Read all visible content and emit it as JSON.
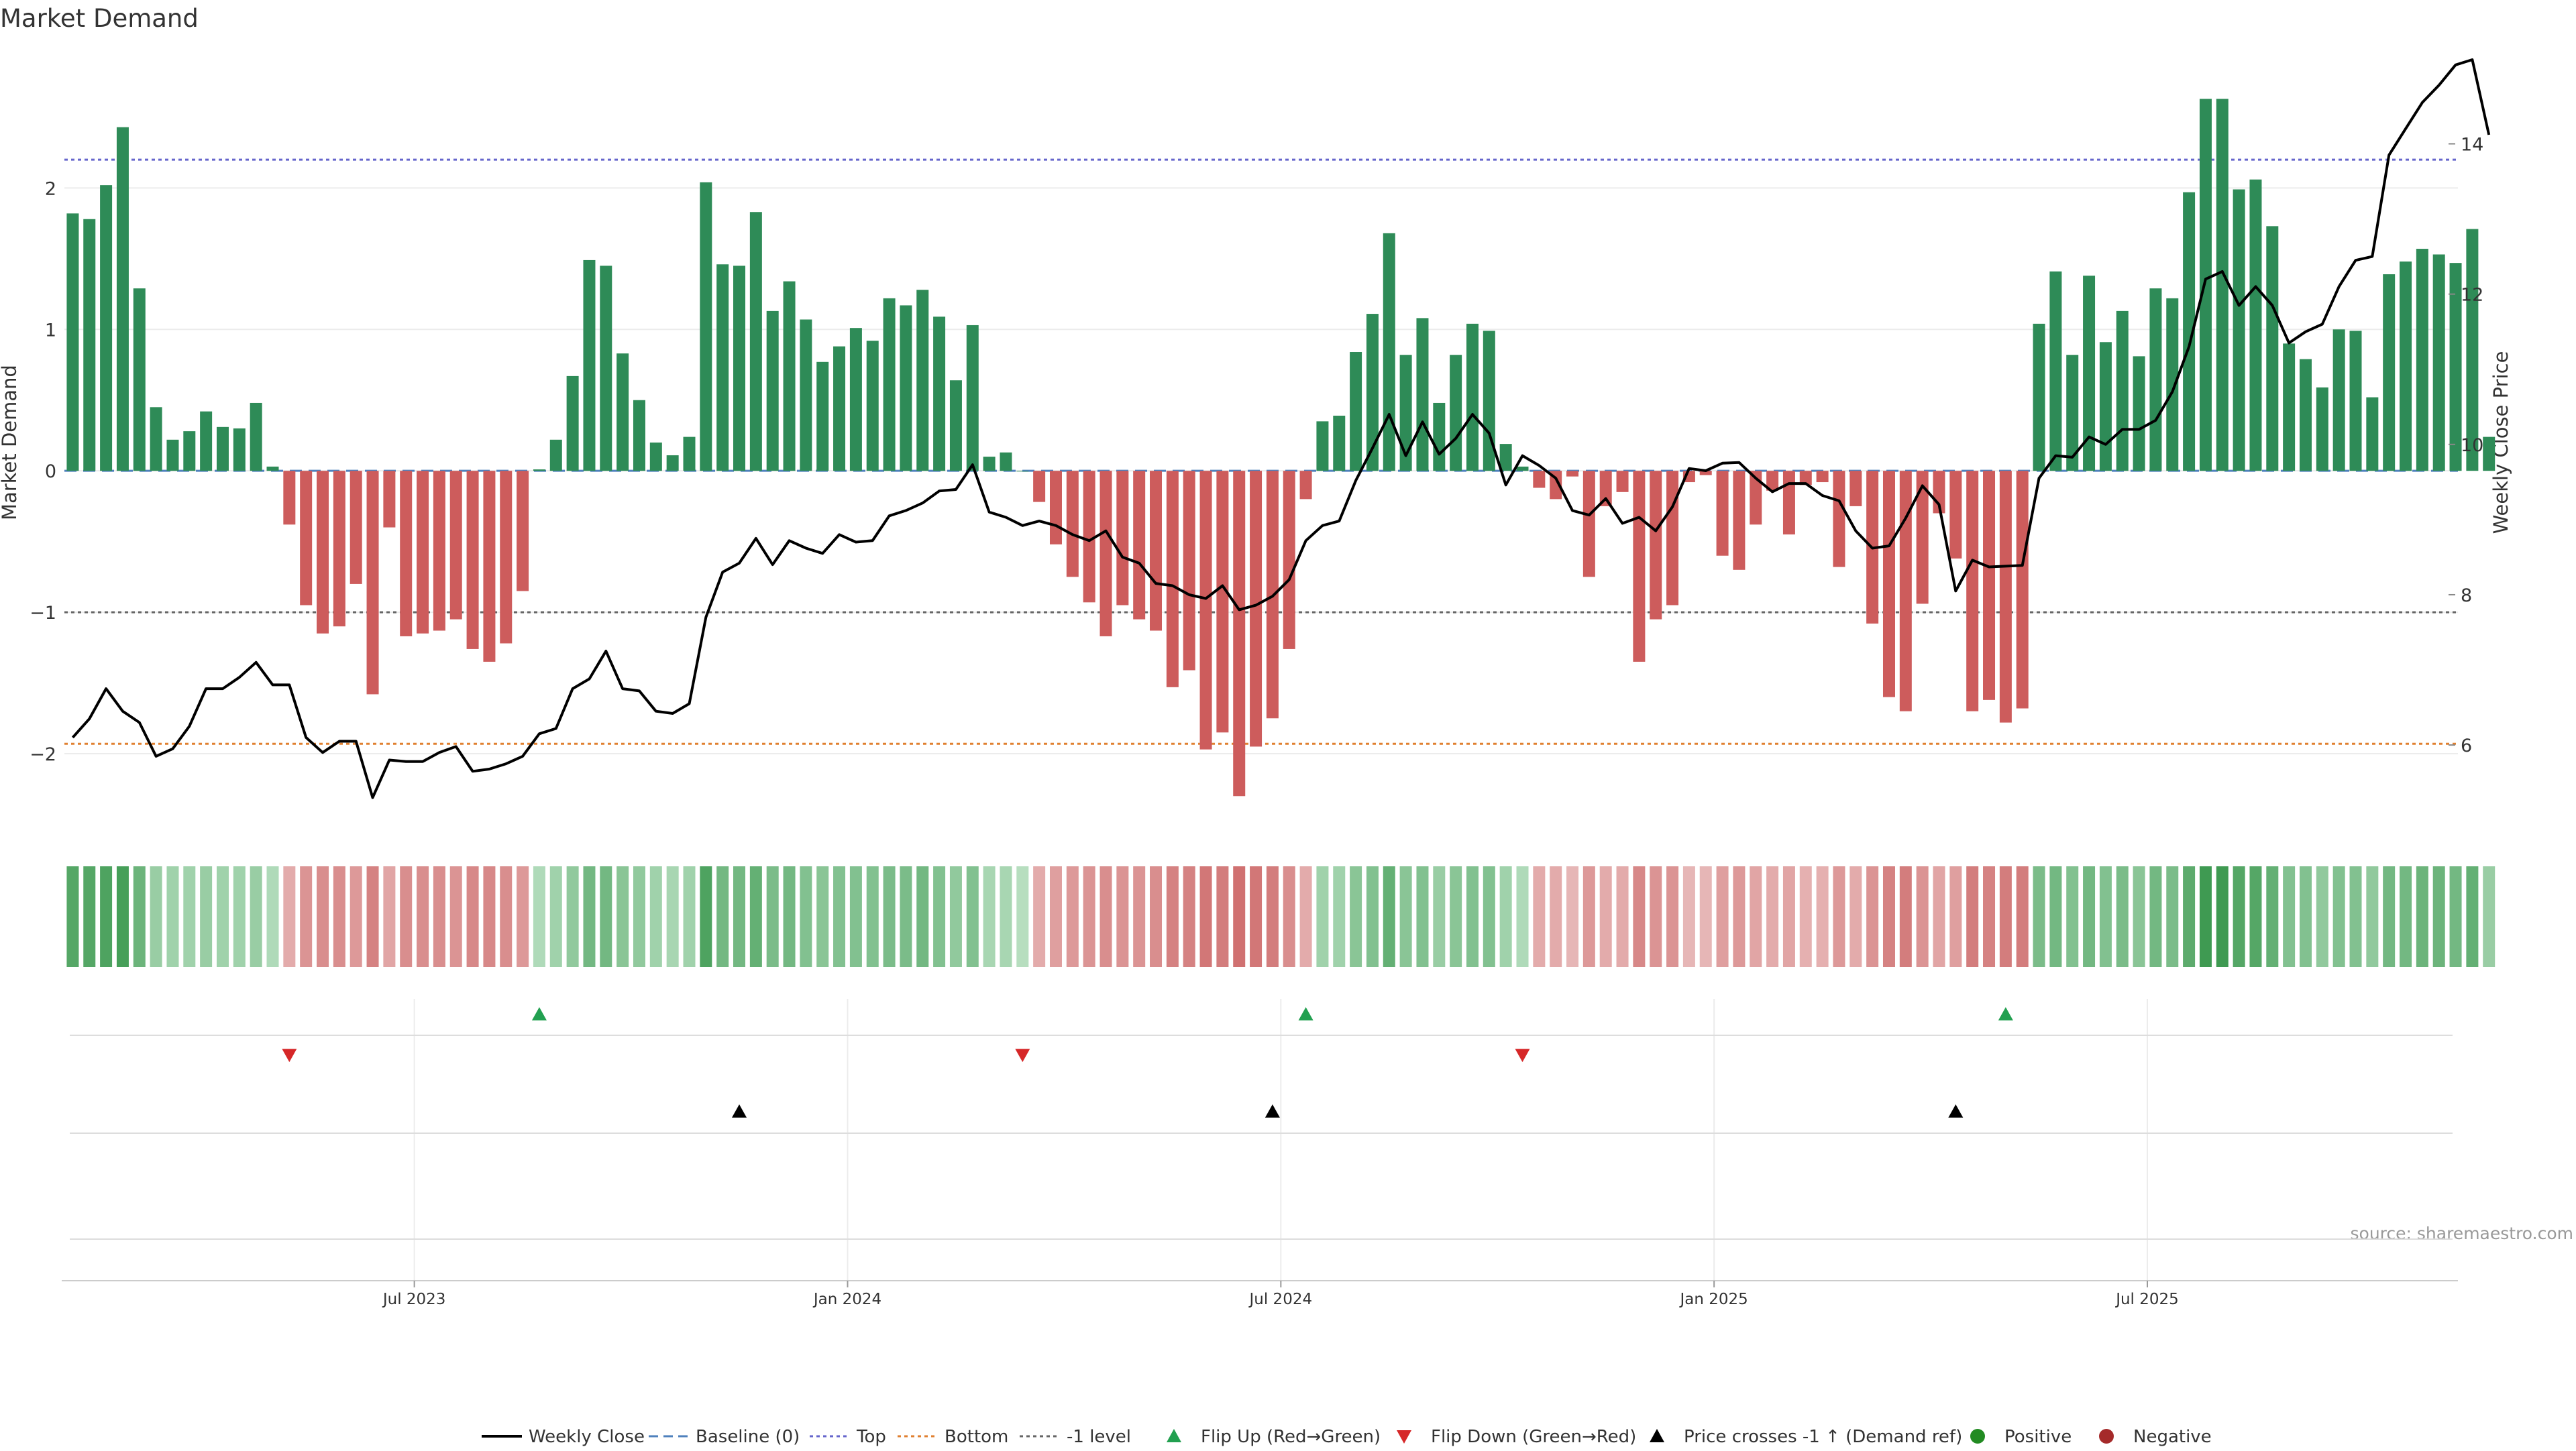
{
  "chart_data": {
    "type": "bar",
    "title": "Market Demand",
    "ylabel": "Market Demand",
    "y2label": "Weekly Close Price",
    "ylim": [
      -2.55,
      2.95
    ],
    "y2lim": [
      4.85,
      15.2
    ],
    "y_ticks": [
      2,
      1,
      0,
      -1,
      -2
    ],
    "y_tick_labels": [
      "2",
      "1",
      "0",
      "−1",
      "−2"
    ],
    "y2_ticks": [
      14,
      12,
      10,
      8,
      6
    ],
    "grid": true,
    "legend_position": "bottom",
    "x_tick_labels": [
      "Jul 2023",
      "Jan 2024",
      "Jul 2024",
      "Jan 2025",
      "Jul 2025"
    ],
    "x_tick_weeks": [
      20.5,
      46.5,
      72.5,
      98.5,
      124.5
    ],
    "reference_lines": {
      "top": 2.2,
      "bottom": -1.93,
      "minus_one": -1.0,
      "baseline": 0
    },
    "colors": {
      "positive_bar": "#2e8b57",
      "negative_bar": "#cd5c5c",
      "price_line": "#000000",
      "top_line": "#6666cc",
      "bottom_line": "#e08030",
      "minus_one_line": "#666666",
      "baseline": "#4f81bd",
      "flip_up": "#22a050",
      "flip_down": "#d62728",
      "cross": "#000000"
    },
    "series": [
      {
        "name": "Market Demand",
        "values": [
          1.82,
          1.78,
          2.02,
          2.43,
          1.29,
          0.45,
          0.22,
          0.28,
          0.42,
          0.31,
          0.3,
          0.48,
          0.03,
          -0.38,
          -0.95,
          -1.15,
          -1.1,
          -0.8,
          -1.58,
          -0.4,
          -1.17,
          -1.15,
          -1.13,
          -1.05,
          -1.26,
          -1.35,
          -1.22,
          -0.85,
          0.01,
          0.22,
          0.67,
          1.49,
          1.45,
          0.83,
          0.5,
          0.2,
          0.11,
          0.24,
          2.04,
          1.46,
          1.45,
          1.83,
          1.13,
          1.34,
          1.07,
          0.77,
          0.88,
          1.01,
          0.92,
          1.22,
          1.17,
          1.28,
          1.09,
          0.64,
          1.03,
          0.1,
          0.13,
          0.0,
          -0.22,
          -0.52,
          -0.75,
          -0.93,
          -1.17,
          -0.95,
          -1.05,
          -1.13,
          -1.53,
          -1.41,
          -1.97,
          -1.85,
          -2.3,
          -1.95,
          -1.75,
          -1.26,
          -0.2,
          0.35,
          0.39,
          0.84,
          1.11,
          1.68,
          0.82,
          1.08,
          0.48,
          0.82,
          1.04,
          0.99,
          0.19,
          0.03,
          -0.12,
          -0.2,
          -0.04,
          -0.75,
          -0.25,
          -0.15,
          -1.35,
          -1.05,
          -0.95,
          -0.08,
          -0.03,
          -0.6,
          -0.7,
          -0.38,
          -0.14,
          -0.45,
          -0.1,
          -0.08,
          -0.68,
          -0.25,
          -1.08,
          -1.6,
          -1.7,
          -0.94,
          -0.3,
          -0.62,
          -1.7,
          -1.62,
          -1.78,
          -1.68,
          1.04,
          1.41,
          0.82,
          1.38,
          0.91,
          1.13,
          0.81,
          1.29,
          1.22,
          1.97,
          2.63,
          2.63,
          1.99,
          2.06,
          1.73,
          0.9,
          0.79,
          0.59,
          1.0,
          0.99,
          0.52,
          1.39,
          1.48,
          1.57,
          1.53,
          1.47,
          1.71,
          0.24
        ]
      },
      {
        "name": "Weekly Close",
        "values": [
          6.1,
          6.35,
          6.75,
          6.45,
          6.3,
          5.85,
          5.95,
          6.25,
          6.75,
          6.75,
          6.9,
          7.1,
          6.8,
          6.8,
          6.1,
          5.9,
          6.05,
          6.05,
          5.3,
          5.8,
          5.78,
          5.78,
          5.9,
          5.98,
          5.65,
          5.68,
          5.75,
          5.85,
          6.15,
          6.22,
          6.75,
          6.88,
          7.25,
          6.75,
          6.72,
          6.45,
          6.42,
          6.55,
          7.7,
          8.3,
          8.42,
          8.75,
          8.4,
          8.72,
          8.62,
          8.55,
          8.8,
          8.7,
          8.72,
          9.05,
          9.12,
          9.22,
          9.38,
          9.4,
          9.73,
          9.1,
          9.03,
          8.92,
          8.98,
          8.92,
          8.8,
          8.72,
          8.85,
          8.5,
          8.42,
          8.15,
          8.12,
          8.0,
          7.95,
          8.12,
          7.8,
          7.86,
          7.98,
          8.2,
          8.72,
          8.92,
          8.98,
          9.52,
          9.95,
          10.4,
          9.85,
          10.3,
          9.87,
          10.08,
          10.4,
          10.15,
          9.46,
          9.85,
          9.72,
          9.55,
          9.12,
          9.06,
          9.28,
          8.95,
          9.03,
          8.85,
          9.17,
          9.68,
          9.65,
          9.75,
          9.76,
          9.55,
          9.37,
          9.48,
          9.48,
          9.32,
          9.25,
          8.85,
          8.62,
          8.65,
          9.02,
          9.45,
          9.2,
          8.05,
          8.46,
          8.37,
          8.38,
          8.39,
          9.55,
          9.85,
          9.83,
          10.1,
          10.0,
          10.2,
          10.2,
          10.32,
          10.7,
          11.3,
          12.2,
          12.3,
          11.85,
          12.1,
          11.85,
          11.35,
          11.5,
          11.6,
          12.1,
          12.45,
          12.5,
          13.85,
          14.2,
          14.55,
          14.78,
          15.05,
          15.12,
          14.12
        ]
      }
    ],
    "heat_strip": {
      "intensity": [
        0.8,
        0.8,
        0.85,
        0.9,
        0.65,
        0.35,
        0.3,
        0.3,
        0.35,
        0.3,
        0.3,
        0.35,
        0.2,
        0.3,
        0.5,
        0.55,
        0.55,
        0.45,
        0.65,
        0.35,
        0.55,
        0.55,
        0.55,
        0.5,
        0.6,
        0.6,
        0.55,
        0.45,
        0.2,
        0.3,
        0.4,
        0.6,
        0.6,
        0.45,
        0.4,
        0.3,
        0.25,
        0.3,
        0.85,
        0.6,
        0.6,
        0.7,
        0.55,
        0.6,
        0.5,
        0.45,
        0.5,
        0.5,
        0.5,
        0.55,
        0.55,
        0.6,
        0.5,
        0.4,
        0.5,
        0.25,
        0.25,
        0.15,
        0.3,
        0.4,
        0.45,
        0.5,
        0.55,
        0.5,
        0.5,
        0.55,
        0.65,
        0.65,
        0.75,
        0.7,
        0.8,
        0.75,
        0.7,
        0.55,
        0.3,
        0.3,
        0.3,
        0.45,
        0.5,
        0.7,
        0.45,
        0.5,
        0.35,
        0.45,
        0.5,
        0.5,
        0.3,
        0.2,
        0.3,
        0.3,
        0.2,
        0.45,
        0.3,
        0.3,
        0.6,
        0.5,
        0.5,
        0.2,
        0.2,
        0.4,
        0.45,
        0.35,
        0.3,
        0.35,
        0.25,
        0.25,
        0.45,
        0.3,
        0.5,
        0.65,
        0.7,
        0.5,
        0.35,
        0.4,
        0.7,
        0.65,
        0.7,
        0.7,
        0.55,
        0.6,
        0.5,
        0.6,
        0.5,
        0.55,
        0.45,
        0.6,
        0.55,
        0.75,
        0.95,
        0.95,
        0.8,
        0.8,
        0.7,
        0.5,
        0.5,
        0.4,
        0.5,
        0.5,
        0.4,
        0.6,
        0.6,
        0.65,
        0.65,
        0.6,
        0.7,
        0.35
      ]
    },
    "flip_up_weeks": [
      28,
      74,
      116
    ],
    "flip_down_weeks": [
      13,
      57,
      87
    ],
    "price_cross_weeks": [
      40,
      72,
      113
    ],
    "legend": [
      {
        "label": "Weekly Close",
        "symbol": "line"
      },
      {
        "label": "Baseline (0)",
        "symbol": "dash"
      },
      {
        "label": "Top",
        "symbol": "dot-blue"
      },
      {
        "label": "Bottom",
        "symbol": "dot-orange"
      },
      {
        "label": "-1 level",
        "symbol": "dot-gray"
      },
      {
        "label": "Flip Up (Red→Green)",
        "symbol": "tri-up-green"
      },
      {
        "label": "Flip Down (Green→Red)",
        "symbol": "tri-down-red"
      },
      {
        "label": "Price crosses -1 ↑ (Demand ref)",
        "symbol": "tri-up-black"
      },
      {
        "label": "Positive",
        "symbol": "circle-green"
      },
      {
        "label": "Negative",
        "symbol": "circle-red"
      }
    ],
    "source": "source: sharemaestro.com"
  }
}
